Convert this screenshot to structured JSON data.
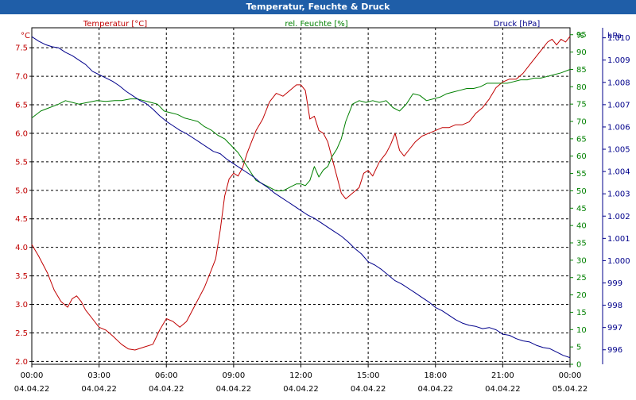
{
  "window": {
    "title": "Temperatur, Feuchte & Druck"
  },
  "colors": {
    "temperature": "#c00000",
    "humidity": "#008000",
    "pressure": "#00008b",
    "titlebar": "#1f5ea8",
    "grid": "#000000",
    "axis_text": "#000000"
  },
  "chart_data": {
    "type": "line",
    "title": "Temperatur, Feuchte & Druck",
    "x_tick_labels": [
      {
        "time": "00:00",
        "date": "04.04.22"
      },
      {
        "time": "03:00",
        "date": "04.04.22"
      },
      {
        "time": "06:00",
        "date": "04.04.22"
      },
      {
        "time": "09:00",
        "date": "04.04.22"
      },
      {
        "time": "12:00",
        "date": "04.04.22"
      },
      {
        "time": "15:00",
        "date": "04.04.22"
      },
      {
        "time": "18:00",
        "date": "04.04.22"
      },
      {
        "time": "21:00",
        "date": "04.04.22"
      },
      {
        "time": "00:00",
        "date": "05.04.22"
      }
    ],
    "x_unit": "hours",
    "xlim": [
      0,
      24
    ],
    "grid": true,
    "axes": {
      "temperature": {
        "unit_label": "°C",
        "ylim": [
          1.95,
          7.85
        ],
        "ticks": [
          "2.0",
          "2.5",
          "3.0",
          "3.5",
          "4.0",
          "4.5",
          "5.0",
          "5.5",
          "6.0",
          "6.5",
          "7.0",
          "7.5"
        ]
      },
      "humidity": {
        "unit_label": "%",
        "ylim": [
          0,
          97
        ],
        "ticks": [
          "0",
          "5",
          "10",
          "15",
          "20",
          "25",
          "30",
          "35",
          "40",
          "45",
          "50",
          "55",
          "60",
          "65",
          "70",
          "75",
          "80",
          "85",
          "90",
          "95"
        ]
      },
      "pressure": {
        "unit_label": "hPa",
        "ylim": [
          995.35,
          1010.45
        ],
        "ticks": [
          "996",
          "997",
          "998",
          "999",
          "1.000",
          "1.001",
          "1.002",
          "1.003",
          "1.004",
          "1.005",
          "1.006",
          "1.007",
          "1.008",
          "1.009",
          "1.010"
        ]
      }
    },
    "series": [
      {
        "name": "Temperatur [°C]",
        "axis": "temperature",
        "x": [
          0,
          0.3,
          0.7,
          1,
          1.3,
          1.6,
          1.8,
          2,
          2.2,
          2.4,
          2.7,
          3,
          3.3,
          3.6,
          4,
          4.3,
          4.6,
          5,
          5.4,
          5.7,
          6,
          6.3,
          6.6,
          6.9,
          7.3,
          7.7,
          8,
          8.2,
          8.4,
          8.6,
          8.8,
          9,
          9.2,
          9.4,
          9.6,
          9.8,
          10,
          10.3,
          10.6,
          10.9,
          11.2,
          11.5,
          11.8,
          12,
          12.2,
          12.4,
          12.6,
          12.8,
          13,
          13.2,
          13.5,
          13.8,
          14,
          14.3,
          14.6,
          14.8,
          15,
          15.2,
          15.5,
          15.8,
          16,
          16.2,
          16.4,
          16.6,
          16.8,
          17.1,
          17.4,
          17.7,
          18,
          18.3,
          18.6,
          18.9,
          19.2,
          19.5,
          19.8,
          20.1,
          20.4,
          20.7,
          21,
          21.3,
          21.6,
          21.9,
          22.2,
          22.5,
          22.8,
          23,
          23.2,
          23.4,
          23.6,
          23.8,
          24
        ],
        "values": [
          4.05,
          3.85,
          3.55,
          3.25,
          3.05,
          2.95,
          3.1,
          3.15,
          3.05,
          2.9,
          2.75,
          2.6,
          2.55,
          2.45,
          2.3,
          2.22,
          2.2,
          2.25,
          2.3,
          2.55,
          2.75,
          2.7,
          2.6,
          2.7,
          3.0,
          3.3,
          3.6,
          3.8,
          4.3,
          4.9,
          5.2,
          5.3,
          5.25,
          5.4,
          5.65,
          5.85,
          6.05,
          6.25,
          6.55,
          6.7,
          6.65,
          6.75,
          6.85,
          6.85,
          6.75,
          6.25,
          6.3,
          6.05,
          6.0,
          5.85,
          5.4,
          4.95,
          4.85,
          4.95,
          5.05,
          5.3,
          5.35,
          5.25,
          5.5,
          5.65,
          5.8,
          6.0,
          5.7,
          5.6,
          5.7,
          5.85,
          5.95,
          6.0,
          6.05,
          6.1,
          6.1,
          6.15,
          6.15,
          6.2,
          6.35,
          6.45,
          6.6,
          6.8,
          6.9,
          6.95,
          6.95,
          7.05,
          7.2,
          7.35,
          7.5,
          7.6,
          7.65,
          7.55,
          7.65,
          7.6,
          7.7
        ]
      },
      {
        "name": "rel. Feuchte [%]",
        "axis": "humidity",
        "x": [
          0,
          0.4,
          0.8,
          1.2,
          1.5,
          1.8,
          2.1,
          2.5,
          2.9,
          3.3,
          3.7,
          4,
          4.4,
          4.7,
          5,
          5.3,
          5.6,
          5.9,
          6.2,
          6.5,
          6.8,
          7.1,
          7.4,
          7.7,
          8,
          8.3,
          8.6,
          8.9,
          9.2,
          9.5,
          9.8,
          10,
          10.3,
          10.6,
          10.9,
          11.2,
          11.5,
          11.8,
          12,
          12.2,
          12.4,
          12.6,
          12.8,
          13,
          13.2,
          13.4,
          13.6,
          13.8,
          14,
          14.3,
          14.6,
          14.9,
          15.2,
          15.5,
          15.8,
          16.1,
          16.4,
          16.7,
          17,
          17.3,
          17.6,
          17.9,
          18.2,
          18.5,
          18.8,
          19.1,
          19.4,
          19.7,
          20,
          20.3,
          20.6,
          20.9,
          21.2,
          21.5,
          21.8,
          22.1,
          22.4,
          22.7,
          23,
          23.3,
          23.6,
          24
        ],
        "values": [
          71,
          73,
          74,
          75,
          76,
          75.5,
          75,
          75.5,
          76,
          75.8,
          76,
          76,
          76.5,
          76.5,
          76,
          75.5,
          75,
          73,
          72.5,
          72,
          71,
          70.5,
          70,
          68.5,
          67.5,
          66,
          65,
          63,
          61,
          58,
          55,
          53,
          52,
          51,
          50,
          50,
          51,
          52,
          52,
          51.5,
          53,
          57,
          54,
          56,
          57,
          60,
          62,
          65,
          70,
          75,
          76,
          75.5,
          76,
          75.5,
          76,
          74,
          73,
          75,
          78,
          77.5,
          76,
          76.5,
          77,
          78,
          78.5,
          79,
          79.5,
          79.5,
          80,
          81,
          81,
          81,
          81,
          81.5,
          82,
          82,
          82.5,
          82.5,
          83,
          83.5,
          84,
          85
        ]
      },
      {
        "name": "Druck [hPa]",
        "axis": "pressure",
        "x": [
          0,
          0.3,
          0.6,
          0.9,
          1.2,
          1.5,
          1.8,
          2.1,
          2.4,
          2.7,
          3,
          3.3,
          3.6,
          3.9,
          4.2,
          4.5,
          4.8,
          5.1,
          5.4,
          5.7,
          6,
          6.3,
          6.6,
          6.9,
          7.2,
          7.5,
          7.8,
          8.1,
          8.4,
          8.7,
          9,
          9.3,
          9.6,
          9.9,
          10.2,
          10.5,
          10.8,
          11.1,
          11.4,
          11.7,
          12,
          12.3,
          12.6,
          12.9,
          13.2,
          13.5,
          13.8,
          14.1,
          14.4,
          14.7,
          15,
          15.3,
          15.6,
          15.9,
          16.2,
          16.5,
          16.8,
          17.1,
          17.4,
          17.7,
          18,
          18.3,
          18.6,
          18.9,
          19.2,
          19.5,
          19.8,
          20.1,
          20.4,
          20.7,
          21,
          21.3,
          21.6,
          21.9,
          22.2,
          22.5,
          22.8,
          23.1,
          23.4,
          23.7,
          24
        ],
        "values": [
          1010.05,
          1009.85,
          1009.7,
          1009.6,
          1009.55,
          1009.35,
          1009.2,
          1009.0,
          1008.8,
          1008.5,
          1008.35,
          1008.2,
          1008.05,
          1007.85,
          1007.6,
          1007.4,
          1007.2,
          1007.05,
          1006.8,
          1006.5,
          1006.25,
          1006.05,
          1005.85,
          1005.7,
          1005.5,
          1005.3,
          1005.1,
          1004.9,
          1004.8,
          1004.55,
          1004.35,
          1004.15,
          1003.95,
          1003.75,
          1003.5,
          1003.3,
          1003.05,
          1002.85,
          1002.65,
          1002.45,
          1002.25,
          1002.05,
          1001.9,
          1001.7,
          1001.5,
          1001.3,
          1001.1,
          1000.85,
          1000.55,
          1000.3,
          999.95,
          999.8,
          999.6,
          999.35,
          999.1,
          998.95,
          998.75,
          998.55,
          998.35,
          998.15,
          997.9,
          997.75,
          997.55,
          997.35,
          997.2,
          997.1,
          997.05,
          996.95,
          997.0,
          996.9,
          996.7,
          996.65,
          996.5,
          996.4,
          996.35,
          996.2,
          996.1,
          996.05,
          995.9,
          995.75,
          995.65
        ]
      }
    ]
  }
}
